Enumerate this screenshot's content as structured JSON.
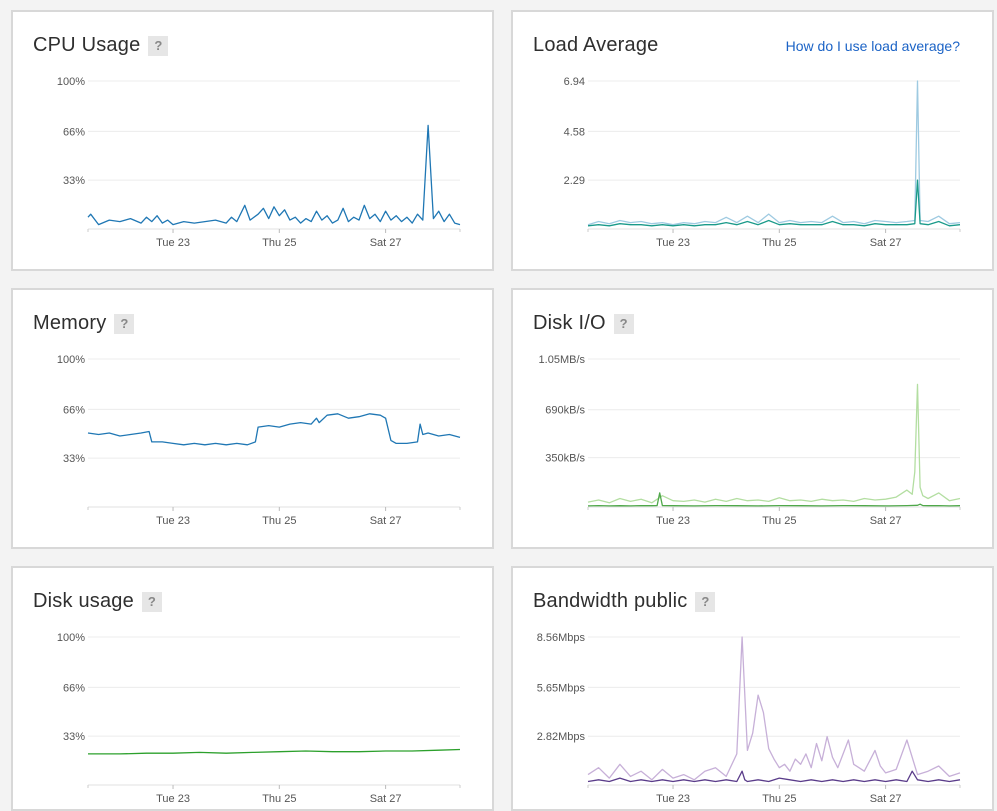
{
  "help_glyph": "?",
  "load_help_link": "How do I use load average?",
  "cards": [
    {
      "title": "CPU Usage",
      "show_help": true,
      "chart_data": {
        "type": "line",
        "title": "CPU Usage",
        "y_tick_labels": [
          "100%",
          "66%",
          "33%"
        ],
        "y_ticks": [
          100,
          66,
          33
        ],
        "ylim": [
          0,
          100
        ],
        "x_tick_labels": [
          "Tue 23",
          "Thu 25",
          "Sat 27"
        ],
        "x_ticks": [
          2,
          4,
          6
        ],
        "xlim": [
          0.4,
          7.4
        ],
        "series": [
          {
            "color": "#1f77b4",
            "x": [
              0.4,
              0.45,
              0.6,
              0.8,
              1.0,
              1.2,
              1.4,
              1.5,
              1.6,
              1.7,
              1.8,
              1.9,
              2.0,
              2.2,
              2.4,
              2.6,
              2.8,
              3.0,
              3.1,
              3.2,
              3.35,
              3.45,
              3.6,
              3.7,
              3.8,
              3.9,
              4.0,
              4.1,
              4.2,
              4.3,
              4.4,
              4.5,
              4.6,
              4.7,
              4.8,
              4.9,
              5.0,
              5.1,
              5.2,
              5.3,
              5.4,
              5.5,
              5.6,
              5.7,
              5.8,
              5.9,
              6.0,
              6.1,
              6.2,
              6.3,
              6.4,
              6.5,
              6.6,
              6.7,
              6.8,
              6.9,
              7.0,
              7.1,
              7.2,
              7.3,
              7.4
            ],
            "y": [
              8,
              10,
              3,
              6,
              5,
              7,
              4,
              8,
              5,
              9,
              4,
              6,
              3,
              5,
              4,
              5,
              6,
              4,
              8,
              5,
              16,
              6,
              10,
              14,
              7,
              15,
              9,
              13,
              6,
              8,
              4,
              7,
              5,
              12,
              6,
              9,
              4,
              6,
              14,
              5,
              8,
              6,
              16,
              7,
              10,
              5,
              12,
              6,
              9,
              5,
              8,
              4,
              10,
              6,
              70,
              7,
              12,
              5,
              10,
              4,
              3
            ]
          }
        ]
      }
    },
    {
      "title": "Load Average",
      "show_help": false,
      "link": true,
      "chart_data": {
        "type": "line",
        "title": "Load Average",
        "y_tick_labels": [
          "6.94",
          "4.58",
          "2.29"
        ],
        "y_ticks": [
          6.94,
          4.58,
          2.29
        ],
        "ylim": [
          0,
          6.94
        ],
        "x_tick_labels": [
          "Tue 23",
          "Thu 25",
          "Sat 27"
        ],
        "x_ticks": [
          2,
          4,
          6
        ],
        "xlim": [
          0.4,
          7.4
        ],
        "series": [
          {
            "color": "#9ecae1",
            "x": [
              0.4,
              0.6,
              0.8,
              1.0,
              1.2,
              1.4,
              1.6,
              1.8,
              2.0,
              2.2,
              2.4,
              2.6,
              2.8,
              3.0,
              3.2,
              3.4,
              3.6,
              3.8,
              4.0,
              4.2,
              4.4,
              4.6,
              4.8,
              5.0,
              5.2,
              5.4,
              5.6,
              5.8,
              6.0,
              6.2,
              6.4,
              6.55,
              6.6,
              6.65,
              6.8,
              7.0,
              7.2,
              7.4
            ],
            "y": [
              0.2,
              0.35,
              0.25,
              0.4,
              0.3,
              0.35,
              0.25,
              0.3,
              0.2,
              0.3,
              0.25,
              0.35,
              0.3,
              0.55,
              0.3,
              0.6,
              0.3,
              0.7,
              0.3,
              0.4,
              0.3,
              0.35,
              0.3,
              0.6,
              0.3,
              0.35,
              0.25,
              0.4,
              0.35,
              0.3,
              0.35,
              0.4,
              6.94,
              0.4,
              0.35,
              0.6,
              0.25,
              0.3
            ]
          },
          {
            "color": "#1a9a8a",
            "x": [
              0.4,
              0.6,
              0.8,
              1.0,
              1.2,
              1.4,
              1.6,
              1.8,
              2.0,
              2.2,
              2.4,
              2.6,
              2.8,
              3.0,
              3.2,
              3.4,
              3.6,
              3.8,
              4.0,
              4.2,
              4.4,
              4.6,
              4.8,
              5.0,
              5.2,
              5.4,
              5.6,
              5.8,
              6.0,
              6.2,
              6.4,
              6.55,
              6.6,
              6.65,
              6.8,
              7.0,
              7.2,
              7.4
            ],
            "y": [
              0.15,
              0.2,
              0.15,
              0.25,
              0.2,
              0.2,
              0.15,
              0.2,
              0.15,
              0.2,
              0.15,
              0.2,
              0.2,
              0.3,
              0.2,
              0.35,
              0.2,
              0.4,
              0.2,
              0.25,
              0.2,
              0.2,
              0.2,
              0.35,
              0.2,
              0.2,
              0.15,
              0.25,
              0.2,
              0.2,
              0.2,
              0.25,
              2.29,
              0.25,
              0.2,
              0.35,
              0.15,
              0.2
            ]
          }
        ]
      }
    },
    {
      "title": "Memory",
      "show_help": true,
      "chart_data": {
        "type": "line",
        "title": "Memory",
        "y_tick_labels": [
          "100%",
          "66%",
          "33%"
        ],
        "y_ticks": [
          100,
          66,
          33
        ],
        "ylim": [
          0,
          100
        ],
        "x_tick_labels": [
          "Tue 23",
          "Thu 25",
          "Sat 27"
        ],
        "x_ticks": [
          2,
          4,
          6
        ],
        "xlim": [
          0.4,
          7.4
        ],
        "series": [
          {
            "color": "#1f77b4",
            "x": [
              0.4,
              0.6,
              0.8,
              1.0,
              1.2,
              1.4,
              1.55,
              1.6,
              1.8,
              2.0,
              2.2,
              2.4,
              2.6,
              2.8,
              3.0,
              3.2,
              3.4,
              3.55,
              3.6,
              3.8,
              4.0,
              4.2,
              4.4,
              4.6,
              4.7,
              4.75,
              4.9,
              5.1,
              5.3,
              5.5,
              5.7,
              5.9,
              6.0,
              6.1,
              6.2,
              6.4,
              6.6,
              6.65,
              6.7,
              6.8,
              7.0,
              7.2,
              7.4
            ],
            "y": [
              50,
              49,
              50,
              48,
              49,
              50,
              51,
              44,
              44,
              43,
              42,
              43,
              42,
              43,
              42,
              43,
              42,
              44,
              54,
              55,
              54,
              56,
              57,
              56,
              60,
              57,
              62,
              63,
              60,
              61,
              63,
              62,
              60,
              45,
              43,
              43,
              44,
              56,
              49,
              50,
              48,
              49,
              47
            ]
          }
        ]
      }
    },
    {
      "title": "Disk I/O",
      "show_help": true,
      "chart_data": {
        "type": "line",
        "title": "Disk I/O",
        "y_tick_labels": [
          "1.05MB/s",
          "690kB/s",
          "350kB/s"
        ],
        "y_ticks": [
          1050,
          690,
          350
        ],
        "ylim": [
          0,
          1050
        ],
        "x_tick_labels": [
          "Tue 23",
          "Thu 25",
          "Sat 27"
        ],
        "x_ticks": [
          2,
          4,
          6
        ],
        "xlim": [
          0.4,
          7.4
        ],
        "series": [
          {
            "color": "#b3dea1",
            "x": [
              0.4,
              0.6,
              0.8,
              1.0,
              1.2,
              1.4,
              1.6,
              1.8,
              2.0,
              2.2,
              2.4,
              2.6,
              2.8,
              3.0,
              3.2,
              3.4,
              3.6,
              3.8,
              4.0,
              4.2,
              4.4,
              4.6,
              4.8,
              5.0,
              5.2,
              5.4,
              5.6,
              5.8,
              6.0,
              6.2,
              6.4,
              6.5,
              6.55,
              6.6,
              6.65,
              6.7,
              6.8,
              7.0,
              7.2,
              7.4
            ],
            "y": [
              35,
              50,
              30,
              60,
              40,
              55,
              30,
              80,
              45,
              40,
              50,
              35,
              55,
              40,
              60,
              45,
              50,
              40,
              65,
              45,
              50,
              40,
              55,
              45,
              50,
              40,
              60,
              50,
              55,
              70,
              120,
              90,
              250,
              870,
              140,
              80,
              60,
              100,
              45,
              60
            ]
          },
          {
            "color": "#4fa84a",
            "x": [
              0.4,
              0.6,
              0.8,
              1.0,
              1.2,
              1.4,
              1.6,
              1.7,
              1.75,
              1.8,
              2.0,
              2.4,
              2.8,
              3.2,
              3.6,
              4.0,
              4.4,
              4.8,
              5.2,
              5.6,
              6.0,
              6.4,
              6.6,
              6.65,
              6.7,
              6.8,
              7.0,
              7.2,
              7.4
            ],
            "y": [
              8,
              10,
              8,
              9,
              8,
              10,
              9,
              10,
              100,
              10,
              9,
              8,
              10,
              9,
              8,
              10,
              9,
              8,
              10,
              9,
              8,
              10,
              12,
              20,
              10,
              9,
              10,
              8,
              9
            ]
          }
        ]
      }
    },
    {
      "title": "Disk usage",
      "show_help": true,
      "chart_data": {
        "type": "line",
        "title": "Disk usage",
        "y_tick_labels": [
          "100%",
          "66%",
          "33%"
        ],
        "y_ticks": [
          100,
          66,
          33
        ],
        "ylim": [
          0,
          100
        ],
        "x_tick_labels": [
          "Tue 23",
          "Thu 25",
          "Sat 27"
        ],
        "x_ticks": [
          2,
          4,
          6
        ],
        "xlim": [
          0.4,
          7.4
        ],
        "series": [
          {
            "color": "#2ca02c",
            "x": [
              0.4,
              1.0,
              1.5,
              2.0,
              2.5,
              3.0,
              3.5,
              4.0,
              4.5,
              5.0,
              5.5,
              6.0,
              6.5,
              7.0,
              7.4
            ],
            "y": [
              21,
              21,
              21.5,
              21.5,
              22,
              21.5,
              22,
              22.5,
              23,
              22.5,
              22.5,
              23,
              23,
              23.5,
              24
            ]
          }
        ]
      }
    },
    {
      "title": "Bandwidth public",
      "show_help": true,
      "chart_data": {
        "type": "line",
        "title": "Bandwidth public",
        "y_tick_labels": [
          "8.56Mbps",
          "5.65Mbps",
          "2.82Mbps"
        ],
        "y_ticks": [
          8.56,
          5.65,
          2.82
        ],
        "ylim": [
          0,
          8.56
        ],
        "x_tick_labels": [
          "Tue 23",
          "Thu 25",
          "Sat 27"
        ],
        "x_ticks": [
          2,
          4,
          6
        ],
        "xlim": [
          0.4,
          7.4
        ],
        "series": [
          {
            "color": "#c7b0d8",
            "x": [
              0.4,
              0.6,
              0.8,
              1.0,
              1.2,
              1.4,
              1.6,
              1.8,
              2.0,
              2.2,
              2.4,
              2.6,
              2.8,
              3.0,
              3.2,
              3.3,
              3.4,
              3.5,
              3.6,
              3.7,
              3.8,
              3.9,
              4.0,
              4.1,
              4.2,
              4.3,
              4.4,
              4.5,
              4.6,
              4.7,
              4.8,
              4.9,
              5.0,
              5.1,
              5.2,
              5.3,
              5.4,
              5.5,
              5.6,
              5.7,
              5.8,
              5.9,
              6.0,
              6.2,
              6.4,
              6.6,
              6.8,
              7.0,
              7.2,
              7.4
            ],
            "y": [
              0.6,
              1.0,
              0.4,
              1.2,
              0.5,
              0.8,
              0.3,
              0.9,
              0.4,
              0.6,
              0.3,
              0.8,
              1.0,
              0.5,
              1.8,
              8.56,
              2.0,
              3.0,
              5.2,
              4.2,
              2.1,
              1.5,
              1.0,
              1.2,
              0.8,
              1.5,
              1.2,
              1.8,
              1.0,
              2.4,
              1.4,
              2.8,
              1.6,
              1.0,
              1.8,
              2.6,
              1.2,
              1.0,
              0.8,
              1.4,
              2.0,
              1.1,
              0.7,
              0.9,
              2.6,
              0.6,
              0.8,
              1.1,
              0.5,
              0.7
            ]
          },
          {
            "color": "#5a3c8a",
            "x": [
              0.4,
              0.6,
              0.8,
              1.0,
              1.2,
              1.4,
              1.6,
              1.8,
              2.0,
              2.2,
              2.4,
              2.6,
              2.8,
              3.0,
              3.2,
              3.3,
              3.35,
              3.4,
              3.6,
              3.8,
              4.0,
              4.2,
              4.4,
              4.6,
              4.8,
              5.0,
              5.2,
              5.4,
              5.6,
              5.8,
              6.0,
              6.2,
              6.4,
              6.5,
              6.6,
              6.8,
              7.0,
              7.2,
              7.4
            ],
            "y": [
              0.2,
              0.3,
              0.2,
              0.4,
              0.2,
              0.3,
              0.2,
              0.3,
              0.2,
              0.3,
              0.2,
              0.3,
              0.2,
              0.3,
              0.2,
              0.8,
              0.3,
              0.2,
              0.3,
              0.2,
              0.4,
              0.3,
              0.2,
              0.3,
              0.2,
              0.3,
              0.2,
              0.3,
              0.2,
              0.3,
              0.2,
              0.3,
              0.2,
              0.8,
              0.3,
              0.2,
              0.3,
              0.2,
              0.3
            ]
          }
        ]
      }
    }
  ]
}
